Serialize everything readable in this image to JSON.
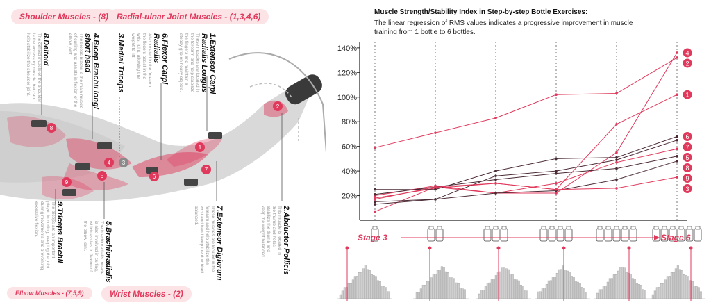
{
  "pills": {
    "shoulder": "Shoulder Muscles - (8)",
    "radial": "Radial-ulnar Joint Muscles - (1,3,4,6)",
    "elbow": "Elbow Muscles - (7,5,9)",
    "wrist": "Wrist Muscles - (2)"
  },
  "muscles": [
    {
      "label": "8.Deltoid",
      "desc": "The deltoid muscle of the shoulder is the accessory muscle that can help stabilize the shoulder joint."
    },
    {
      "label": "4.Bicep Brachii long/ short head",
      "desc": "The biceps brachii is the main muscle of curling and assists in flexion of the elbow joint."
    },
    {
      "label": "3.Medial Triceps",
      "desc": ""
    },
    {
      "label": "6.Flexor Carpi Radialis",
      "desc": "Also located in the forearm, the flexors assist in the wrist joint, allowing the weight to lift."
    },
    {
      "label": "1.Extensor Carpi Radialis Longus",
      "desc": "These muscles are located in the forearm and help stabilize the fingers and maintain a steady grip on heavy objects."
    },
    {
      "label": "9.Triceps Brachii",
      "desc": "The triceps are an important player in curling, keeping the joint during movements and preventing excessive flexion."
    },
    {
      "label": "5.Brachioradialis",
      "desc": "The brachioradialis muscle is also involved in curling, which assists in flexion of the elbow joint."
    },
    {
      "label": "7.Extensor Digiorum",
      "desc": "These muscles are located in the forearm and help stabilize the wrist and hand keep the dumbbell balanced."
    },
    {
      "label": "2.Abductor Pollicis",
      "desc": "This muscle is located in the thumb and helps stabilize the thumb and keep the weight balanced."
    }
  ],
  "colors": {
    "accent": "#e0395c",
    "accent_light": "#fbe3e6",
    "dark_line": "#4a2a35"
  },
  "chart_data": {
    "type": "line",
    "title": "Muscle Strength/Stability Index in Step-by-step Bottle Exercises:",
    "subtitle": "The linear regression of RMS values indicates a progressive improvement in muscle training from 1 bottle to 6 bottles.",
    "x": [
      1,
      2,
      3,
      4,
      5,
      6
    ],
    "ylim": [
      0,
      145
    ],
    "yticks": [
      "140%",
      "120%",
      "100%",
      "80%",
      "60%",
      "40%",
      "20%"
    ],
    "ytick_values": [
      140,
      120,
      100,
      80,
      60,
      40,
      20
    ],
    "series": [
      {
        "name": "4",
        "values": [
          7,
          27,
          22,
          22,
          55,
          136
        ],
        "color": "#e0395c"
      },
      {
        "name": "2",
        "values": [
          59,
          71,
          83,
          102,
          103,
          132
        ],
        "color": "#e0395c"
      },
      {
        "name": "1",
        "values": [
          18,
          26,
          30,
          25,
          78,
          102
        ],
        "color": "#e0395c"
      },
      {
        "name": "6",
        "values": [
          25,
          25,
          40,
          50,
          51,
          68
        ],
        "color": "#4a2a35"
      },
      {
        "name": "7",
        "values": [
          15,
          17,
          36,
          40,
          49,
          65
        ],
        "color": "#4a2a35"
      },
      {
        "name": "5",
        "values": [
          20,
          28,
          22,
          30,
          47,
          58
        ],
        "color": "#e0395c"
      },
      {
        "name": "8",
        "values": [
          21,
          27,
          33,
          38,
          42,
          52
        ],
        "color": "#4a2a35"
      },
      {
        "name": "9",
        "values": [
          13,
          17,
          22,
          24,
          33,
          48
        ],
        "color": "#4a2a35"
      },
      {
        "name": "3",
        "values": [
          17,
          27,
          30,
          25,
          26,
          35
        ],
        "color": "#e0395c"
      }
    ],
    "stage_start": "Stage 3",
    "stage_end": "Stage 6",
    "bottle_counts": [
      1,
      2,
      3,
      4,
      5,
      6
    ]
  }
}
